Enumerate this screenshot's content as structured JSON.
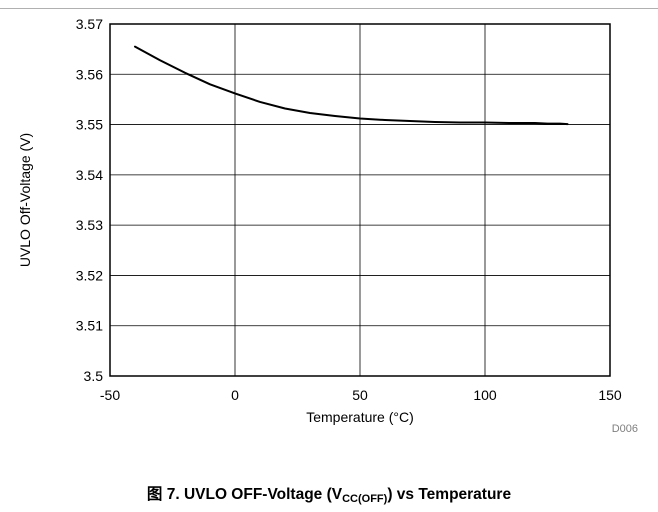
{
  "chart_data": {
    "type": "line",
    "xlabel": "Temperature (°C)",
    "ylabel": "UVLO Off-Voltage (V)",
    "xlim": [
      -50,
      150
    ],
    "ylim": [
      3.5,
      3.57
    ],
    "x_ticks": [
      "-50",
      "0",
      "50",
      "100",
      "150"
    ],
    "y_ticks": [
      "3.5",
      "3.51",
      "3.52",
      "3.53",
      "3.54",
      "3.55",
      "3.56",
      "3.57"
    ],
    "grid": true,
    "figure_id": "D006",
    "series": [
      {
        "x": [
          -40,
          -30,
          -20,
          -10,
          0,
          10,
          20,
          30,
          40,
          50,
          60,
          70,
          80,
          90,
          100,
          110,
          120,
          125,
          130,
          133
        ],
        "y": [
          3.5655,
          3.5628,
          3.5603,
          3.558,
          3.5562,
          3.5545,
          3.5532,
          3.5523,
          3.5517,
          3.5512,
          3.5509,
          3.5507,
          3.5505,
          3.5504,
          3.5504,
          3.5503,
          3.5503,
          3.5502,
          3.5502,
          3.5501
        ],
        "color": "#000000"
      }
    ]
  },
  "caption": {
    "prefix": "图 7. UVLO OFF-Voltage (V",
    "subscript": "CC(OFF)",
    "suffix": ") vs Temperature"
  }
}
